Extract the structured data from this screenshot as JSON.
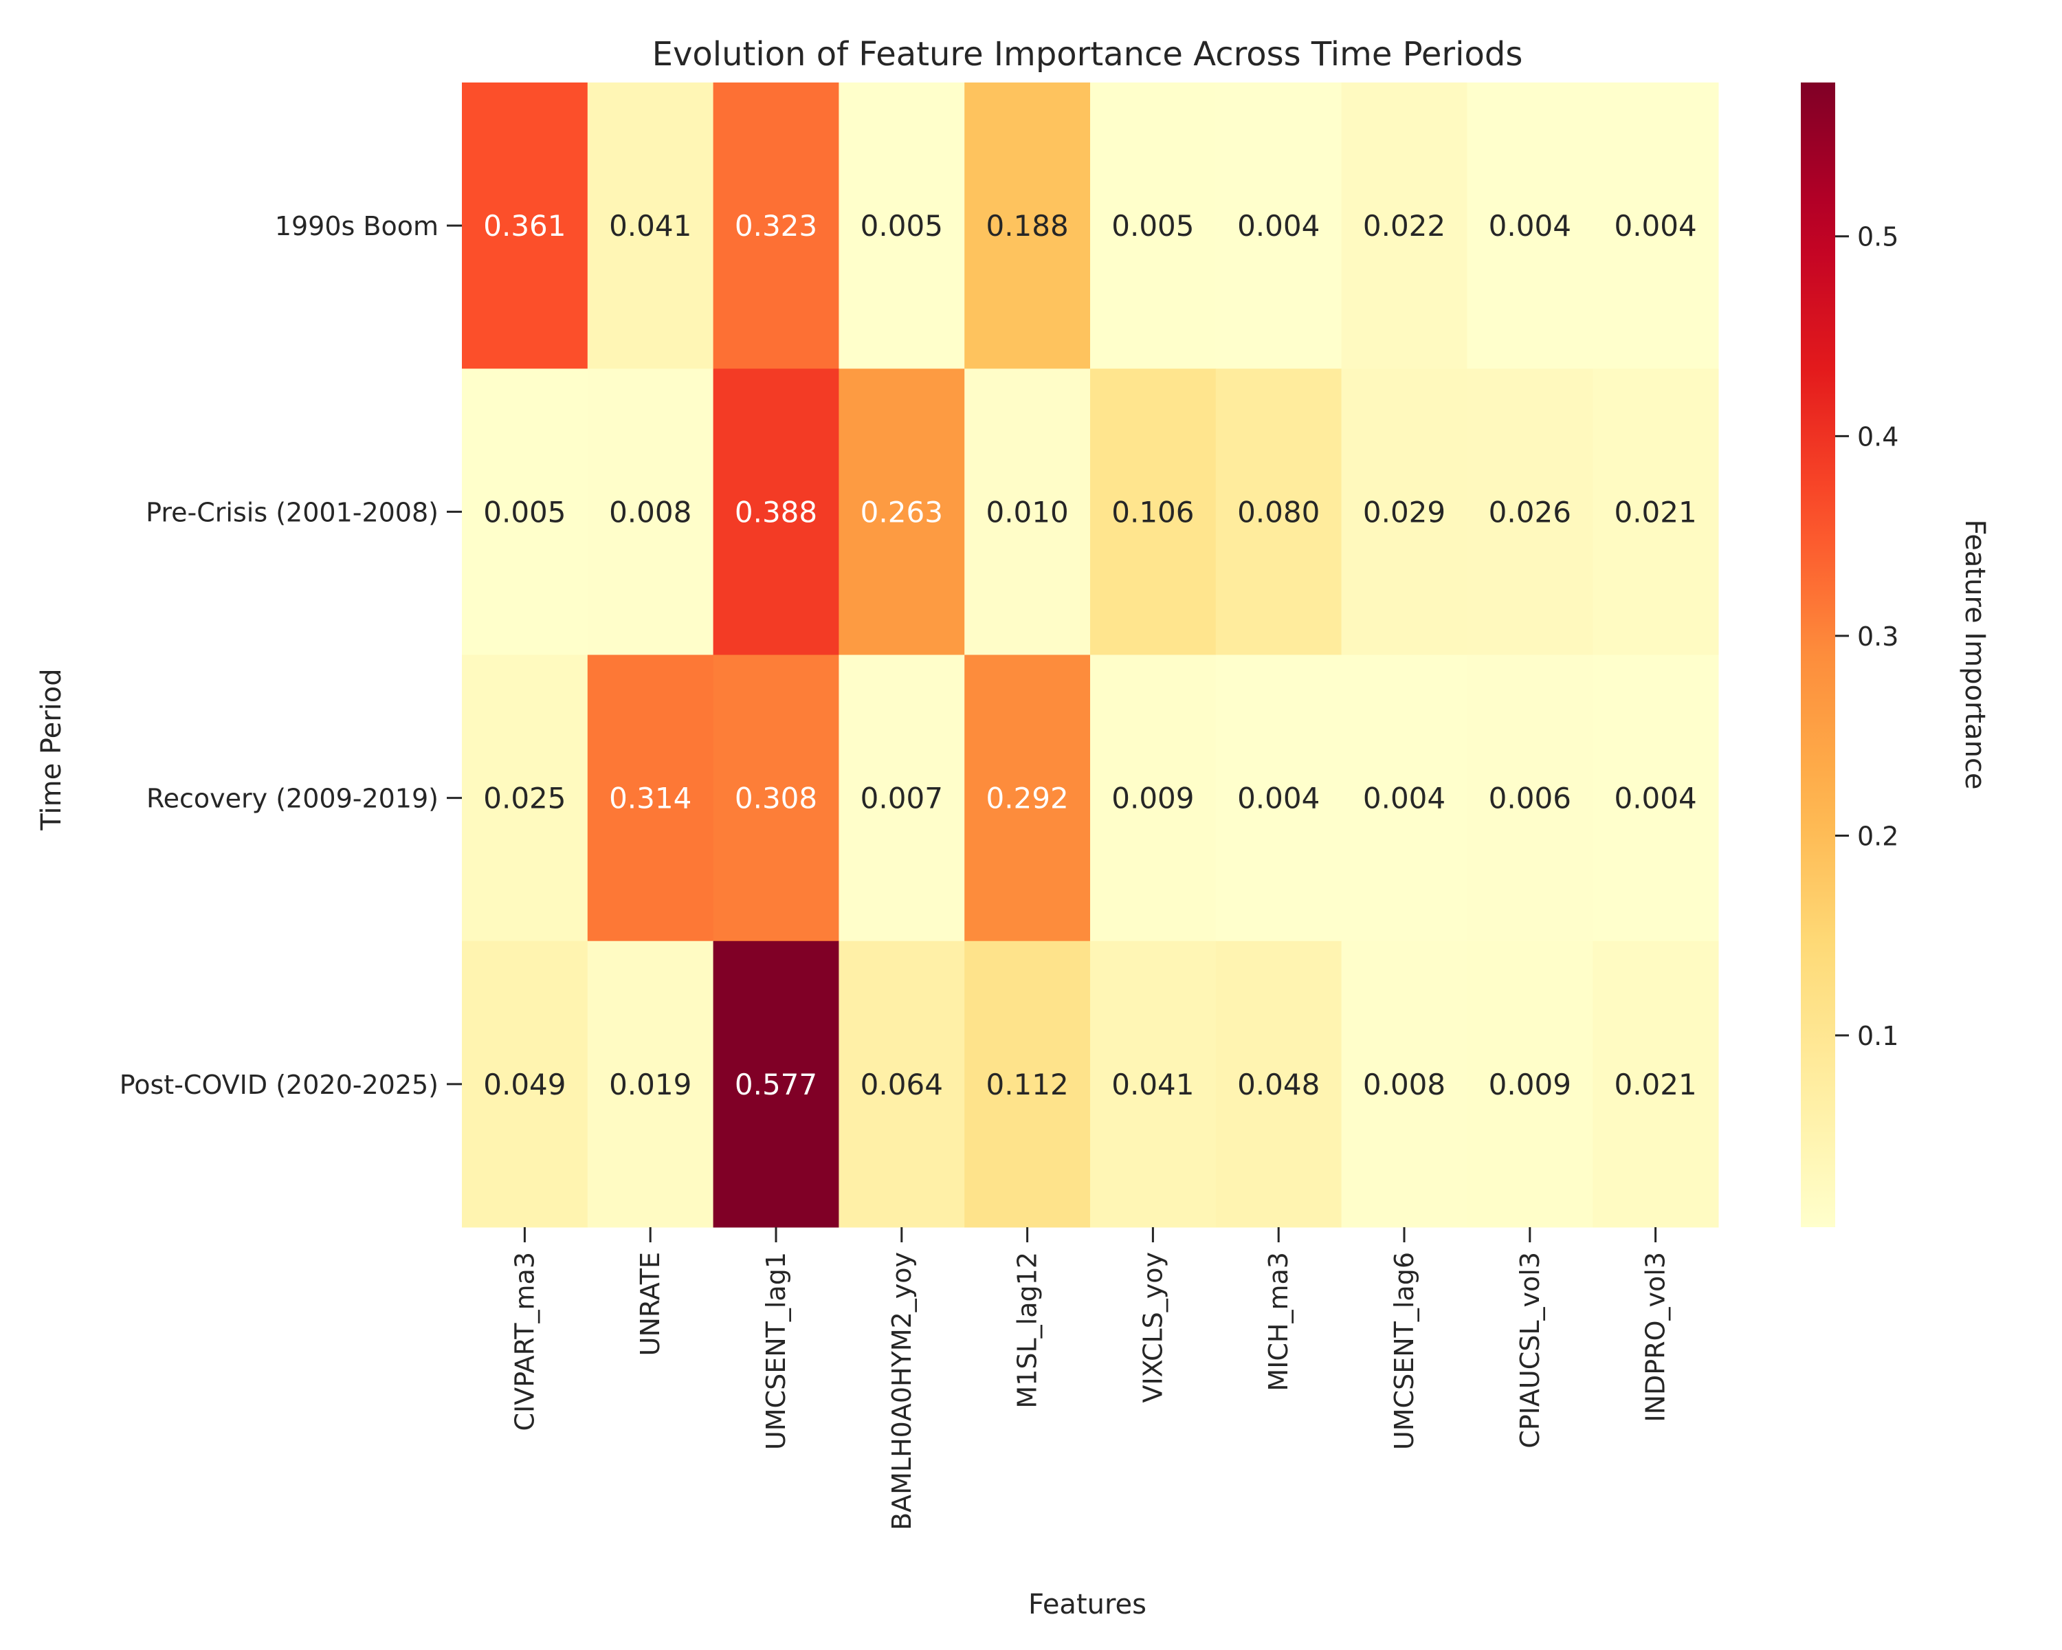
{
  "chart_data": {
    "type": "heatmap",
    "title": "Evolution of Feature Importance Across Time Periods",
    "xlabel": "Features",
    "ylabel": "Time Period",
    "colorbar_label": "Feature Importance",
    "colormap": "YlOrRd",
    "x_categories": [
      "CIVPART_ma3",
      "UNRATE",
      "UMCSENT_lag1",
      "BAMLH0A0HYM2_yoy",
      "M1SL_lag12",
      "VIXCLS_yoy",
      "MICH_ma3",
      "UMCSENT_lag6",
      "CPIAUCSL_vol3",
      "INDPRO_vol3"
    ],
    "y_categories": [
      "1990s Boom",
      "Pre-Crisis (2001-2008)",
      "Recovery (2009-2019)",
      "Post-COVID (2020-2025)"
    ],
    "values": [
      [
        0.361,
        0.041,
        0.323,
        0.005,
        0.188,
        0.005,
        0.004,
        0.022,
        0.004,
        0.004
      ],
      [
        0.005,
        0.008,
        0.388,
        0.263,
        0.01,
        0.106,
        0.08,
        0.029,
        0.026,
        0.021
      ],
      [
        0.025,
        0.314,
        0.308,
        0.007,
        0.292,
        0.009,
        0.004,
        0.004,
        0.006,
        0.004
      ],
      [
        0.049,
        0.019,
        0.577,
        0.064,
        0.112,
        0.041,
        0.048,
        0.008,
        0.009,
        0.021
      ]
    ],
    "value_labels": [
      [
        "0.361",
        "0.041",
        "0.323",
        "0.005",
        "0.188",
        "0.005",
        "0.004",
        "0.022",
        "0.004",
        "0.004"
      ],
      [
        "0.005",
        "0.008",
        "0.388",
        "0.263",
        "0.010",
        "0.106",
        "0.080",
        "0.029",
        "0.026",
        "0.021"
      ],
      [
        "0.025",
        "0.314",
        "0.308",
        "0.007",
        "0.292",
        "0.009",
        "0.004",
        "0.004",
        "0.006",
        "0.004"
      ],
      [
        "0.049",
        "0.019",
        "0.577",
        "0.064",
        "0.112",
        "0.041",
        "0.048",
        "0.008",
        "0.009",
        "0.021"
      ]
    ],
    "color_range": [
      0.004,
      0.577
    ],
    "colorbar_ticks": [
      0.1,
      0.2,
      0.3,
      0.4,
      0.5
    ],
    "colorbar_tick_labels": [
      "0.1",
      "0.2",
      "0.3",
      "0.4",
      "0.5"
    ]
  }
}
